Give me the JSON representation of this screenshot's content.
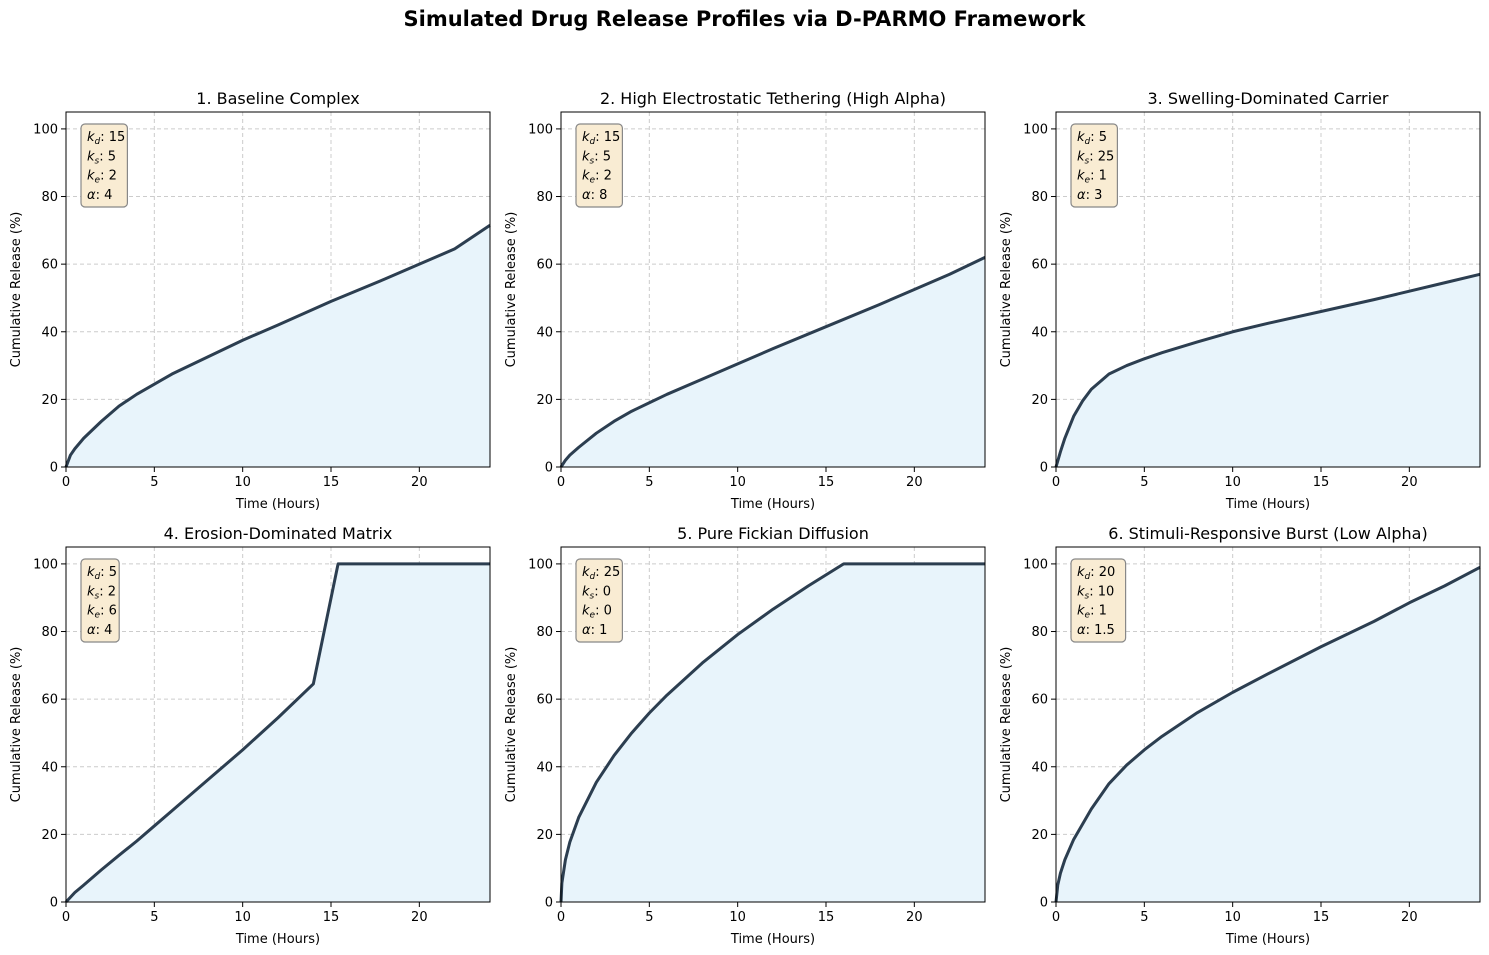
{
  "figure": {
    "title": "Simulated Drug Release Profiles via D-PARMO Framework",
    "line_color": "#2c3e50",
    "fill_color": "#e8f4fb",
    "box_fill": "#f9ecd3",
    "box_border": "#888888",
    "grid_color": "#cccccc"
  },
  "chart_data": [
    {
      "type": "area",
      "title": "1. Baseline Complex",
      "xlabel": "Time (Hours)",
      "ylabel": "Cumulative Release (%)",
      "xlim": [
        0,
        24
      ],
      "ylim": [
        0,
        105
      ],
      "xticks": [
        0,
        5,
        10,
        15,
        20
      ],
      "yticks": [
        0,
        20,
        40,
        60,
        80,
        100
      ],
      "grid": true,
      "params": [
        {
          "sym": "k",
          "sub": "d",
          "value": "15"
        },
        {
          "sym": "k",
          "sub": "s",
          "value": "5"
        },
        {
          "sym": "k",
          "sub": "e",
          "value": "2"
        },
        {
          "sym": "α",
          "sub": "",
          "value": "4"
        }
      ],
      "x": [
        0,
        0.25,
        0.5,
        1,
        2,
        3,
        4,
        5,
        6,
        8,
        10,
        12,
        15,
        18,
        20,
        22,
        24
      ],
      "y": [
        0,
        3.5,
        5.4,
        8.5,
        13.5,
        18.0,
        21.5,
        24.5,
        27.5,
        32.5,
        37.5,
        42.0,
        49.0,
        55.5,
        60.0,
        64.5,
        71.5
      ]
    },
    {
      "type": "area",
      "title": "2. High Electrostatic Tethering (High Alpha)",
      "xlabel": "Time (Hours)",
      "ylabel": "Cumulative Release (%)",
      "xlim": [
        0,
        24
      ],
      "ylim": [
        0,
        105
      ],
      "xticks": [
        0,
        5,
        10,
        15,
        20
      ],
      "yticks": [
        0,
        20,
        40,
        60,
        80,
        100
      ],
      "grid": true,
      "params": [
        {
          "sym": "k",
          "sub": "d",
          "value": "15"
        },
        {
          "sym": "k",
          "sub": "s",
          "value": "5"
        },
        {
          "sym": "k",
          "sub": "e",
          "value": "2"
        },
        {
          "sym": "α",
          "sub": "",
          "value": "8"
        }
      ],
      "x": [
        0,
        0.25,
        0.5,
        1,
        2,
        3,
        4,
        5,
        6,
        8,
        10,
        12,
        15,
        18,
        20,
        22,
        24
      ],
      "y": [
        0,
        2.0,
        3.5,
        5.8,
        10.0,
        13.5,
        16.5,
        19.0,
        21.5,
        26.0,
        30.5,
        35.0,
        41.5,
        48.0,
        52.5,
        57.0,
        62.0
      ]
    },
    {
      "type": "area",
      "title": "3. Swelling-Dominated Carrier",
      "xlabel": "Time (Hours)",
      "ylabel": "Cumulative Release (%)",
      "xlim": [
        0,
        24
      ],
      "ylim": [
        0,
        105
      ],
      "xticks": [
        0,
        5,
        10,
        15,
        20
      ],
      "yticks": [
        0,
        20,
        40,
        60,
        80,
        100
      ],
      "grid": true,
      "params": [
        {
          "sym": "k",
          "sub": "d",
          "value": "5"
        },
        {
          "sym": "k",
          "sub": "s",
          "value": "25"
        },
        {
          "sym": "k",
          "sub": "e",
          "value": "1"
        },
        {
          "sym": "α",
          "sub": "",
          "value": "3"
        }
      ],
      "x": [
        0,
        0.25,
        0.5,
        1,
        1.5,
        2,
        3,
        4,
        5,
        6,
        8,
        10,
        12,
        15,
        18,
        20,
        22,
        24
      ],
      "y": [
        0,
        4.5,
        8.5,
        15.0,
        19.5,
        23.0,
        27.5,
        30.0,
        32.0,
        33.8,
        37.0,
        40.0,
        42.5,
        46.0,
        49.5,
        52.0,
        54.5,
        57.0
      ]
    },
    {
      "type": "area",
      "title": "4. Erosion-Dominated Matrix",
      "xlabel": "Time (Hours)",
      "ylabel": "Cumulative Release (%)",
      "xlim": [
        0,
        24
      ],
      "ylim": [
        0,
        105
      ],
      "xticks": [
        0,
        5,
        10,
        15,
        20
      ],
      "yticks": [
        0,
        20,
        40,
        60,
        80,
        100
      ],
      "grid": true,
      "params": [
        {
          "sym": "k",
          "sub": "d",
          "value": "5"
        },
        {
          "sym": "k",
          "sub": "s",
          "value": "2"
        },
        {
          "sym": "k",
          "sub": "e",
          "value": "6"
        },
        {
          "sym": "α",
          "sub": "",
          "value": "4"
        }
      ],
      "x": [
        0,
        0.5,
        1,
        2,
        3,
        4,
        5,
        6,
        8,
        10,
        12,
        14,
        15.4,
        16,
        18,
        20,
        22,
        24
      ],
      "y": [
        0,
        2.8,
        5.0,
        9.5,
        13.8,
        18.0,
        22.5,
        27.0,
        36.0,
        45.0,
        54.5,
        64.5,
        100,
        100,
        100,
        100,
        100,
        100
      ]
    },
    {
      "type": "area",
      "title": "5. Pure Fickian Diffusion",
      "xlabel": "Time (Hours)",
      "ylabel": "Cumulative Release (%)",
      "xlim": [
        0,
        24
      ],
      "ylim": [
        0,
        105
      ],
      "xticks": [
        0,
        5,
        10,
        15,
        20
      ],
      "yticks": [
        0,
        20,
        40,
        60,
        80,
        100
      ],
      "grid": true,
      "params": [
        {
          "sym": "k",
          "sub": "d",
          "value": "25"
        },
        {
          "sym": "k",
          "sub": "s",
          "value": "0"
        },
        {
          "sym": "k",
          "sub": "e",
          "value": "0"
        },
        {
          "sym": "α",
          "sub": "",
          "value": "1"
        }
      ],
      "x": [
        0,
        0.05,
        0.25,
        0.5,
        1,
        2,
        3,
        4,
        5,
        6,
        8,
        10,
        12,
        14,
        16,
        18,
        20,
        22,
        24
      ],
      "y": [
        0,
        5.6,
        12.5,
        17.7,
        25.0,
        35.4,
        43.3,
        50.0,
        55.9,
        61.2,
        70.7,
        79.1,
        86.6,
        93.5,
        100,
        100,
        100,
        100,
        100
      ]
    },
    {
      "type": "area",
      "title": "6. Stimuli-Responsive Burst (Low Alpha)",
      "xlabel": "Time (Hours)",
      "ylabel": "Cumulative Release (%)",
      "xlim": [
        0,
        24
      ],
      "ylim": [
        0,
        105
      ],
      "xticks": [
        0,
        5,
        10,
        15,
        20
      ],
      "yticks": [
        0,
        20,
        40,
        60,
        80,
        100
      ],
      "grid": true,
      "params": [
        {
          "sym": "k",
          "sub": "d",
          "value": "20"
        },
        {
          "sym": "k",
          "sub": "s",
          "value": "10"
        },
        {
          "sym": "k",
          "sub": "e",
          "value": "1"
        },
        {
          "sym": "α",
          "sub": "",
          "value": "1.5"
        }
      ],
      "x": [
        0,
        0.1,
        0.25,
        0.5,
        1,
        2,
        3,
        4,
        5,
        6,
        8,
        10,
        12,
        15,
        18,
        20,
        22,
        24
      ],
      "y": [
        0,
        5.0,
        8.5,
        12.5,
        18.5,
        27.5,
        35.0,
        40.5,
        45.0,
        49.0,
        56.0,
        62.0,
        67.5,
        75.5,
        83.0,
        88.5,
        93.5,
        99.0
      ]
    }
  ]
}
